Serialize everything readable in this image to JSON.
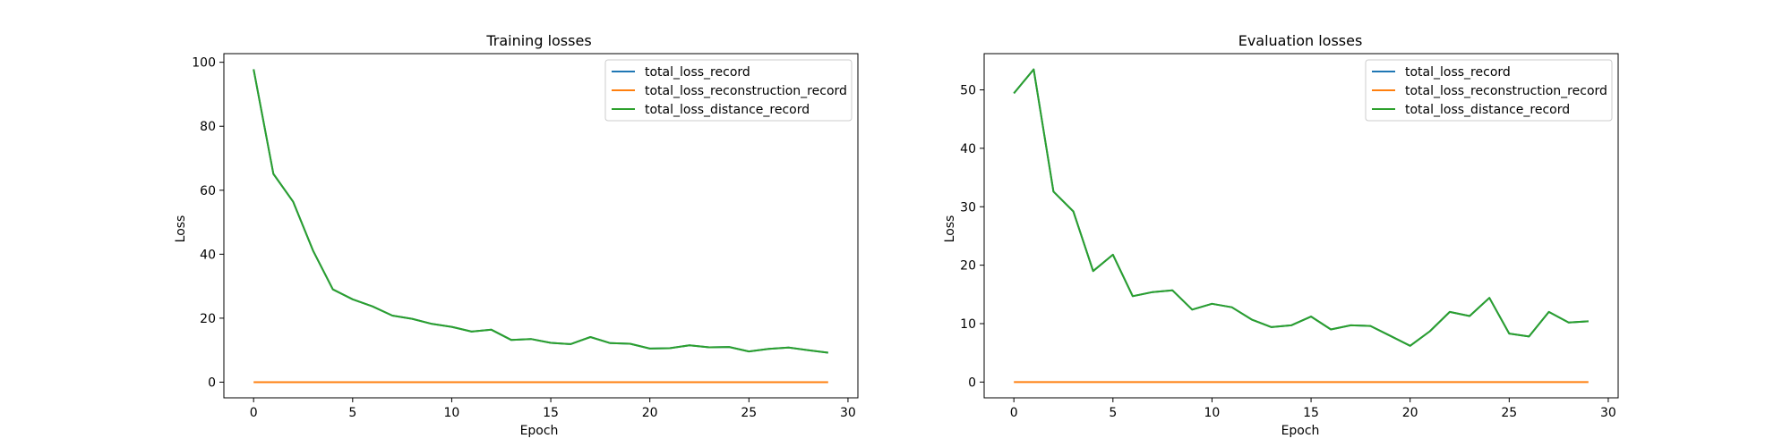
{
  "chart_data": [
    {
      "type": "line",
      "title": "Training losses",
      "xlabel": "Epoch",
      "ylabel": "Loss",
      "xlim": [
        -1.5,
        30.5
      ],
      "ylim": [
        -4.9,
        102.7
      ],
      "xticks": [
        0,
        5,
        10,
        15,
        20,
        25,
        30
      ],
      "yticks": [
        0,
        20,
        40,
        60,
        80,
        100
      ],
      "legend_position": "top-right",
      "grid": false,
      "x": [
        0,
        1,
        2,
        3,
        4,
        5,
        6,
        7,
        8,
        9,
        10,
        11,
        12,
        13,
        14,
        15,
        16,
        17,
        18,
        19,
        20,
        21,
        22,
        23,
        24,
        25,
        26,
        27,
        28,
        29
      ],
      "series": [
        {
          "name": "total_loss_record",
          "color": "#1f77b4",
          "values": [
            97.8,
            65.1,
            56.4,
            41.1,
            29.0,
            25.9,
            23.7,
            20.8,
            19.8,
            18.2,
            17.3,
            15.8,
            16.4,
            13.2,
            13.5,
            12.3,
            11.9,
            14.1,
            12.2,
            12.0,
            10.5,
            10.6,
            11.5,
            10.9,
            11.0,
            9.6,
            10.4,
            10.8,
            10.0,
            9.2
          ]
        },
        {
          "name": "total_loss_reconstruction_record",
          "color": "#ff7f0e",
          "values": [
            0,
            0,
            0,
            0,
            0,
            0,
            0,
            0,
            0,
            0,
            0,
            0,
            0,
            0,
            0,
            0,
            0,
            0,
            0,
            0,
            0,
            0,
            0,
            0,
            0,
            0,
            0,
            0,
            0,
            0
          ]
        },
        {
          "name": "total_loss_distance_record",
          "color": "#2ca02c",
          "values": [
            97.8,
            65.1,
            56.4,
            41.1,
            29.0,
            25.9,
            23.7,
            20.8,
            19.8,
            18.2,
            17.3,
            15.8,
            16.4,
            13.2,
            13.5,
            12.3,
            11.9,
            14.1,
            12.2,
            12.0,
            10.5,
            10.6,
            11.5,
            10.9,
            11.0,
            9.6,
            10.4,
            10.8,
            10.0,
            9.2
          ]
        }
      ]
    },
    {
      "type": "line",
      "title": "Evaluation losses",
      "xlabel": "Epoch",
      "ylabel": "Loss",
      "xlim": [
        -1.5,
        30.5
      ],
      "ylim": [
        -2.7,
        56.2
      ],
      "xticks": [
        0,
        5,
        10,
        15,
        20,
        25,
        30
      ],
      "yticks": [
        0,
        10,
        20,
        30,
        40,
        50
      ],
      "legend_position": "top-right",
      "grid": false,
      "x": [
        0,
        1,
        2,
        3,
        4,
        5,
        6,
        7,
        8,
        9,
        10,
        11,
        12,
        13,
        14,
        15,
        16,
        17,
        18,
        19,
        20,
        21,
        22,
        23,
        24,
        25,
        26,
        27,
        28,
        29
      ],
      "series": [
        {
          "name": "total_loss_record",
          "color": "#1f77b4",
          "values": [
            49.4,
            53.5,
            32.6,
            29.2,
            19.0,
            21.8,
            14.7,
            15.4,
            15.7,
            12.4,
            13.4,
            12.8,
            10.7,
            9.4,
            9.7,
            11.2,
            9.0,
            9.7,
            9.6,
            7.9,
            6.2,
            8.7,
            12.0,
            11.3,
            14.4,
            8.3,
            7.8,
            12.0,
            10.2,
            10.4
          ]
        },
        {
          "name": "total_loss_reconstruction_record",
          "color": "#ff7f0e",
          "values": [
            0,
            0,
            0,
            0,
            0,
            0,
            0,
            0,
            0,
            0,
            0,
            0,
            0,
            0,
            0,
            0,
            0,
            0,
            0,
            0,
            0,
            0,
            0,
            0,
            0,
            0,
            0,
            0,
            0,
            0
          ]
        },
        {
          "name": "total_loss_distance_record",
          "color": "#2ca02c",
          "values": [
            49.4,
            53.5,
            32.6,
            29.2,
            19.0,
            21.8,
            14.7,
            15.4,
            15.7,
            12.4,
            13.4,
            12.8,
            10.7,
            9.4,
            9.7,
            11.2,
            9.0,
            9.7,
            9.6,
            7.9,
            6.2,
            8.7,
            12.0,
            11.3,
            14.4,
            8.3,
            7.8,
            12.0,
            10.2,
            10.4
          ]
        }
      ]
    }
  ]
}
